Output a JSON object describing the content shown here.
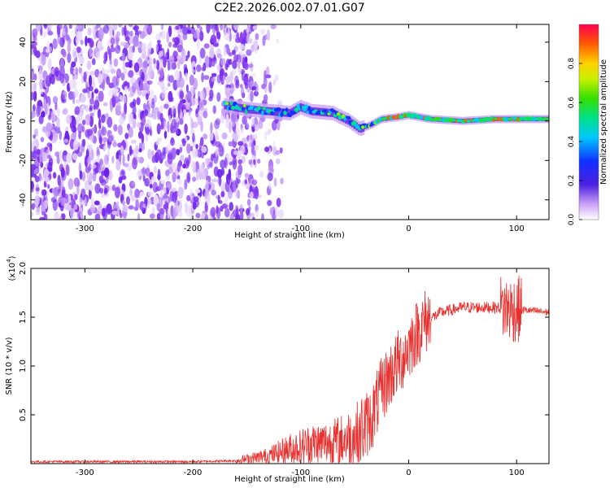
{
  "title": "C2E2.2026.002.07.01.G07",
  "colors": {
    "spectral_dots": "#7b2cf0",
    "snr_line": "#e8302e",
    "axis": "#000000"
  },
  "chart_data": [
    {
      "type": "heatmap",
      "name": "spectrogram",
      "xlabel": "Height of straight line (km)",
      "ylabel": "Frequency (Hz)",
      "xlim": [
        -350,
        130
      ],
      "ylim": [
        -50,
        49
      ],
      "xticks": [
        -300,
        -200,
        -100,
        0,
        100
      ],
      "yticks": [
        -40,
        -20,
        0,
        20,
        40
      ],
      "colorbar": {
        "label": "Normalized spectral amplitude",
        "range": [
          0,
          1
        ],
        "ticks": [
          0.0,
          0.2,
          0.4,
          0.6,
          0.8
        ],
        "tick_labels": [
          "0.0",
          "0.2",
          "0.4",
          "0.6",
          "0.8"
        ]
      },
      "noise_region_x": [
        -350,
        -140
      ],
      "signal_track": {
        "x": [
          -170,
          -150,
          -130,
          -110,
          -100,
          -90,
          -70,
          -55,
          -45,
          -35,
          -25,
          -10,
          0,
          20,
          50,
          80,
          100,
          130
        ],
        "freq_hz": [
          8,
          6,
          5,
          4,
          7,
          5,
          4,
          0,
          -4,
          -2,
          1,
          2,
          3,
          1,
          0,
          1,
          1,
          1
        ]
      }
    },
    {
      "type": "line",
      "name": "snr",
      "xlabel": "Height of straight line (km)",
      "ylabel": "SNR (10 * v/v)",
      "scale_label": "(x10",
      "scale_exponent": "4",
      "xlim": [
        -350,
        130
      ],
      "ylim": [
        0,
        2.0
      ],
      "xticks": [
        -300,
        -200,
        -100,
        0,
        100
      ],
      "yticks": [
        0.5,
        1.0,
        1.5,
        2.0
      ],
      "ytick_labels": [
        "0.5",
        "1.0",
        "1.5",
        "2.0"
      ],
      "envelope": {
        "x": [
          -350,
          -200,
          -160,
          -130,
          -110,
          -90,
          -70,
          -50,
          -35,
          -25,
          -15,
          -5,
          5,
          15,
          30,
          50,
          80,
          100,
          130
        ],
        "y": [
          0.02,
          0.02,
          0.03,
          0.08,
          0.15,
          0.2,
          0.22,
          0.28,
          0.45,
          0.75,
          0.95,
          1.1,
          1.3,
          1.45,
          1.55,
          1.6,
          1.6,
          1.58,
          1.55
        ]
      }
    }
  ]
}
